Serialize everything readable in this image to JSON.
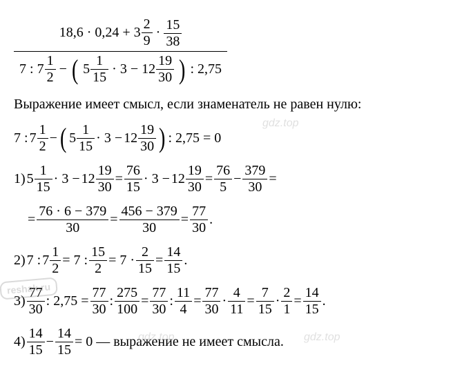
{
  "mainfrac": {
    "num_parts": [
      "18,6 · 0,24 + ",
      "3",
      "2",
      "9",
      " · ",
      "15",
      "38"
    ],
    "den_parts": [
      "7 : ",
      "7",
      "1",
      "2",
      " − ",
      "5",
      "1",
      "15",
      " · 3 − ",
      "12",
      "19",
      "30",
      " : 2,75"
    ]
  },
  "text1": "Выражение имеет смысл, если знаменатель не равен нулю:",
  "eq0": {
    "parts": [
      "7 : ",
      "7",
      "1",
      "2",
      " − ",
      "5",
      "1",
      "15",
      " · 3 − ",
      "12",
      "19",
      "30",
      " : 2,75 = 0"
    ]
  },
  "step1": {
    "label": "1) ",
    "p": [
      "5",
      "1",
      "15",
      " · 3 − ",
      "12",
      "19",
      "30",
      " = ",
      "76",
      "15",
      " · 3 − ",
      "12",
      "19",
      "30",
      " = ",
      "76",
      "5",
      " − ",
      "379",
      "30",
      " ="
    ],
    "p2": [
      "= ",
      "76 · 6 − 379",
      "30",
      " = ",
      "456 − 379",
      "30",
      " = ",
      "77",
      "30",
      "."
    ]
  },
  "step2": {
    "label": "2) ",
    "p": [
      "7 : ",
      "7",
      "1",
      "2",
      " = 7 : ",
      "15",
      "2",
      " = 7 · ",
      "2",
      "15",
      " = ",
      "14",
      "15",
      "."
    ]
  },
  "step3": {
    "label": "3) ",
    "p": [
      "77",
      "30",
      " : 2,75 = ",
      "77",
      "30",
      " : ",
      "275",
      "100",
      " = ",
      "77",
      "30",
      " : ",
      "11",
      "4",
      " = ",
      "77",
      "30",
      " · ",
      "4",
      "11",
      " = ",
      "7",
      "15",
      " · ",
      "2",
      "1",
      " = ",
      "14",
      "15",
      "."
    ]
  },
  "step4": {
    "label": "4) ",
    "p": [
      "14",
      "15",
      " − ",
      "14",
      "15",
      " = 0 — выражение не имеет смысла."
    ]
  },
  "wm": "gdz.top",
  "reshak": "reshak.ru"
}
